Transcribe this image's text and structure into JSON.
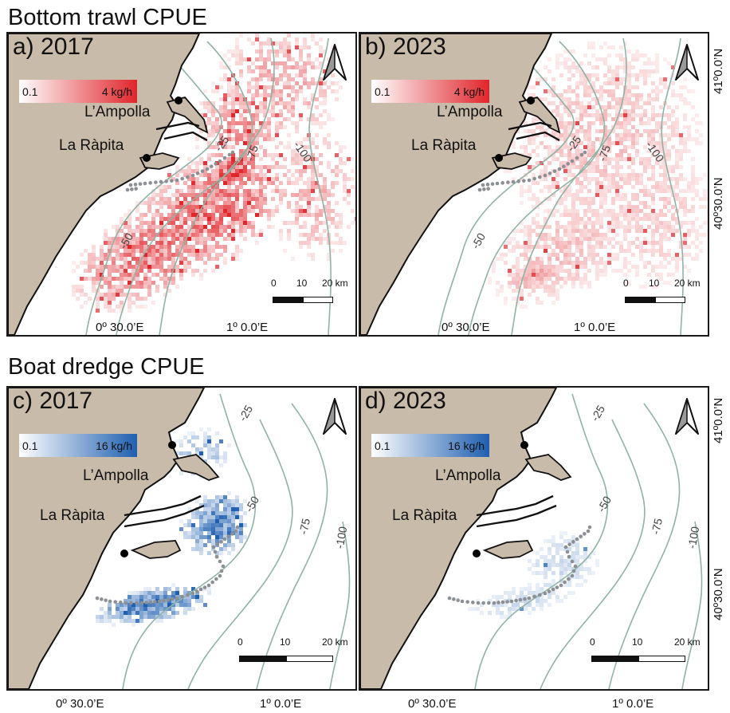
{
  "figure": {
    "sections": [
      {
        "title": "Bottom trawl CPUE"
      },
      {
        "title": "Boat dredge CPUE"
      }
    ],
    "panels": [
      {
        "label": "a) 2017",
        "legend_min": "0.1",
        "legend_max": "4 kg/h",
        "gear": "trawl",
        "intensity": 1.0
      },
      {
        "label": "b) 2023",
        "legend_min": "0.1",
        "legend_max": "4 kg/h",
        "gear": "trawl",
        "intensity": 0.45
      },
      {
        "label": "c) 2017",
        "legend_min": "0.1",
        "legend_max": "16 kg/h",
        "gear": "dredge",
        "intensity": 1.0
      },
      {
        "label": "d) 2023",
        "legend_min": "0.1",
        "legend_max": "16 kg/h",
        "gear": "dredge",
        "intensity": 0.35
      }
    ],
    "places": {
      "north_town": "L’Ampolla",
      "south_town": "La Ràpita"
    },
    "depth_labels": {
      "d25": "-25",
      "d50": "-50",
      "d75": "-75",
      "d100": "-100"
    },
    "scale_bar": {
      "t0": "0",
      "t1": "10",
      "t2": "20 km"
    },
    "lon_labels": {
      "west": "0º 30.0’E",
      "east": "1º 0.0’E"
    },
    "lat_labels": {
      "north": "41º0.0’N",
      "south": "40º30.0’N"
    },
    "colors": {
      "land": "#c9bba9",
      "isobath": "#8fb3a4",
      "trawl_max": "#e0252b",
      "trawl_min": "#ffffff",
      "dredge_max": "#1f5fb0",
      "dredge_min": "#ffffff",
      "track": "#8c8f93"
    }
  }
}
